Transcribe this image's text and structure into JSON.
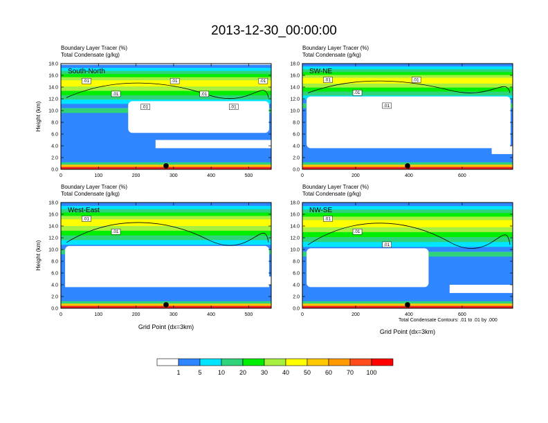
{
  "figure": {
    "title": "2013-12-30_00:00:00",
    "footnote": "Total Condensate Contours: .01 to .01 by .000"
  },
  "colors": {
    "palette": [
      "#ffffff",
      "#2f86ff",
      "#00e5ff",
      "#2ed37a",
      "#00ee00",
      "#a8f040",
      "#ffff00",
      "#ffc800",
      "#ff9a00",
      "#ff4c1c",
      "#ff0000"
    ],
    "ground": "#f02020",
    "contour": "#000000",
    "marker": "#000000"
  },
  "legend": {
    "labels": [
      "1",
      "5",
      "10",
      "20",
      "30",
      "40",
      "50",
      "60",
      "70",
      "100"
    ]
  },
  "chart_data": [
    {
      "type": "heatmap",
      "panel": "south-north",
      "label": "South-North",
      "header1": "Boundary Layer Tracer   (%)",
      "header2": "Total Condensate   (g/kg)",
      "xlabel": "",
      "ylabel": "Height (km)",
      "xlim": [
        0,
        560
      ],
      "ylim": [
        0,
        18
      ],
      "xticks": [
        0,
        100,
        200,
        300,
        400,
        500
      ],
      "yticks": [
        "0.0",
        "2.0",
        "4.0",
        "6.0",
        "8.0",
        "10.0",
        "12.0",
        "14.0",
        "16.0",
        "18.0"
      ],
      "marker_x": 280,
      "contour_labels": [
        ".01",
        ".01",
        ".01",
        ".01",
        ".01",
        ".01",
        ".01"
      ]
    },
    {
      "type": "heatmap",
      "panel": "sw-ne",
      "label": "SW-NE",
      "header1": "Boundary Layer Tracer   (%)",
      "header2": "Total Condensate   (g/kg)",
      "xlabel": "",
      "ylabel": "",
      "xlim": [
        0,
        790
      ],
      "ylim": [
        0,
        18
      ],
      "xticks": [
        0,
        200,
        400,
        600
      ],
      "yticks": [
        "0.0",
        "2.0",
        "4.0",
        "6.0",
        "8.0",
        "10.0",
        "12.0",
        "14.0",
        "16.0",
        "18.0"
      ],
      "marker_x": 395,
      "contour_labels": [
        ".01",
        ".01",
        ".01",
        ".01"
      ]
    },
    {
      "type": "heatmap",
      "panel": "west-east",
      "label": "West-East",
      "header1": "Boundary Layer Tracer   (%)",
      "header2": "Total Condensate   (g/kg)",
      "xlabel": "Grid Point (dx=3km)",
      "ylabel": "Height (km)",
      "xlim": [
        0,
        560
      ],
      "ylim": [
        0,
        18
      ],
      "xticks": [
        0,
        100,
        200,
        300,
        400,
        500
      ],
      "yticks": [
        "0.0",
        "2.0",
        "4.0",
        "6.0",
        "8.0",
        "10.0",
        "12.0",
        "14.0",
        "16.0",
        "18.0"
      ],
      "marker_x": 280,
      "contour_labels": [
        ".01",
        ".01"
      ]
    },
    {
      "type": "heatmap",
      "panel": "nw-se",
      "label": "NW-SE",
      "header1": "Boundary Layer Tracer   (%)",
      "header2": "Total Condensate   (g/kg)",
      "xlabel": "Grid Point (dx=3km)",
      "ylabel": "",
      "xlim": [
        0,
        790
      ],
      "ylim": [
        0,
        18
      ],
      "xticks": [
        0,
        200,
        400,
        600
      ],
      "yticks": [
        "0.0",
        "2.0",
        "4.0",
        "6.0",
        "8.0",
        "10.0",
        "12.0",
        "14.0",
        "16.0",
        "18.0"
      ],
      "marker_x": 395,
      "contour_labels": [
        ".01",
        ".01",
        ".01"
      ]
    }
  ]
}
